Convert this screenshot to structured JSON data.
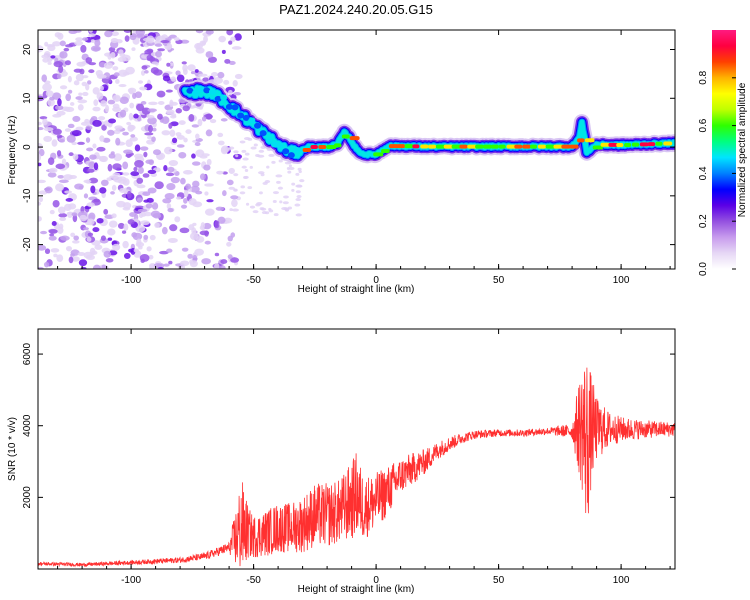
{
  "title": "PAZ1.2024.240.20.05.G15",
  "chart_data": [
    {
      "type": "heatmap",
      "xlabel": "Height of straight line (km)",
      "ylabel": "Frequency (Hz)",
      "xlim": [
        -138,
        122
      ],
      "ylim": [
        -25,
        24
      ],
      "xticks": [
        -100,
        -50,
        0,
        50,
        100
      ],
      "yticks": [
        -20,
        -10,
        0,
        10,
        20
      ],
      "colorbar": {
        "label": "Normalized spectral amplitude",
        "range": [
          0,
          1
        ],
        "ticks": [
          0.0,
          0.2,
          0.4,
          0.6,
          0.8
        ],
        "tick_labels": [
          "0.0",
          "0.2",
          "0.4",
          "0.6",
          "0.8"
        ],
        "colormap": [
          "#ffffff",
          "#e6d7f5",
          "#c79bed",
          "#9450e0",
          "#5a00e6",
          "#0000ff",
          "#0080ff",
          "#00e5ff",
          "#00ff7f",
          "#2eff00",
          "#bfff00",
          "#ffff00",
          "#ffb300",
          "#ff4000",
          "#ff0040",
          "#ff1a80"
        ]
      },
      "signal_trace": {
        "x": [
          -78,
          -72,
          -66,
          -60,
          -55,
          -50,
          -45,
          -40,
          -36,
          -32,
          -28,
          -20,
          -16,
          -13,
          -11,
          -8,
          -5,
          0,
          5,
          10,
          20,
          40,
          60,
          80,
          83,
          84,
          86,
          90,
          100,
          110,
          122
        ],
        "y": [
          11,
          11.5,
          11,
          8.5,
          6.5,
          4.5,
          2.5,
          0.5,
          -0.8,
          -1.2,
          0,
          0,
          0.5,
          3,
          2,
          -0.5,
          -1.5,
          -1.5,
          0.2,
          0.2,
          0.1,
          0.1,
          0.1,
          0.1,
          2,
          5,
          -1,
          0.5,
          0.4,
          0.6,
          0.8
        ]
      },
      "noise_region_x": [
        -138,
        -60
      ]
    },
    {
      "type": "line",
      "xlabel": "Height of straight line (km)",
      "ylabel": "SNR (10 * v/v)",
      "xlim": [
        -138,
        122
      ],
      "ylim": [
        0,
        6700
      ],
      "xticks": [
        -100,
        -50,
        0,
        50,
        100
      ],
      "yticks": [
        2000,
        4000,
        6000
      ],
      "series": [
        {
          "color": "#ff3030",
          "x": [
            -138,
            -120,
            -100,
            -80,
            -70,
            -60,
            -57,
            -55,
            -52,
            -50,
            -45,
            -40,
            -35,
            -30,
            -25,
            -20,
            -15,
            -10,
            -8,
            -5,
            0,
            5,
            10,
            15,
            20,
            25,
            30,
            35,
            40,
            50,
            60,
            70,
            80,
            84,
            86,
            88,
            90,
            95,
            100,
            110,
            122
          ],
          "y": [
            150,
            120,
            180,
            250,
            350,
            600,
            900,
            1200,
            1000,
            900,
            1000,
            1150,
            1150,
            1250,
            1500,
            1500,
            1600,
            1900,
            2100,
            1700,
            1900,
            2200,
            2600,
            2800,
            3000,
            3300,
            3500,
            3650,
            3750,
            3800,
            3800,
            3850,
            3850,
            4000,
            3500,
            3900,
            3900,
            3900,
            3900,
            3900,
            3900
          ],
          "noise_amplitude": [
            50,
            50,
            60,
            80,
            100,
            150,
            900,
            1400,
            700,
            600,
            650,
            700,
            700,
            800,
            900,
            900,
            900,
            1100,
            1200,
            900,
            800,
            700,
            500,
            450,
            350,
            250,
            200,
            150,
            120,
            100,
            100,
            100,
            200,
            1800,
            2600,
            1500,
            900,
            500,
            350,
            250,
            200
          ]
        }
      ]
    }
  ]
}
